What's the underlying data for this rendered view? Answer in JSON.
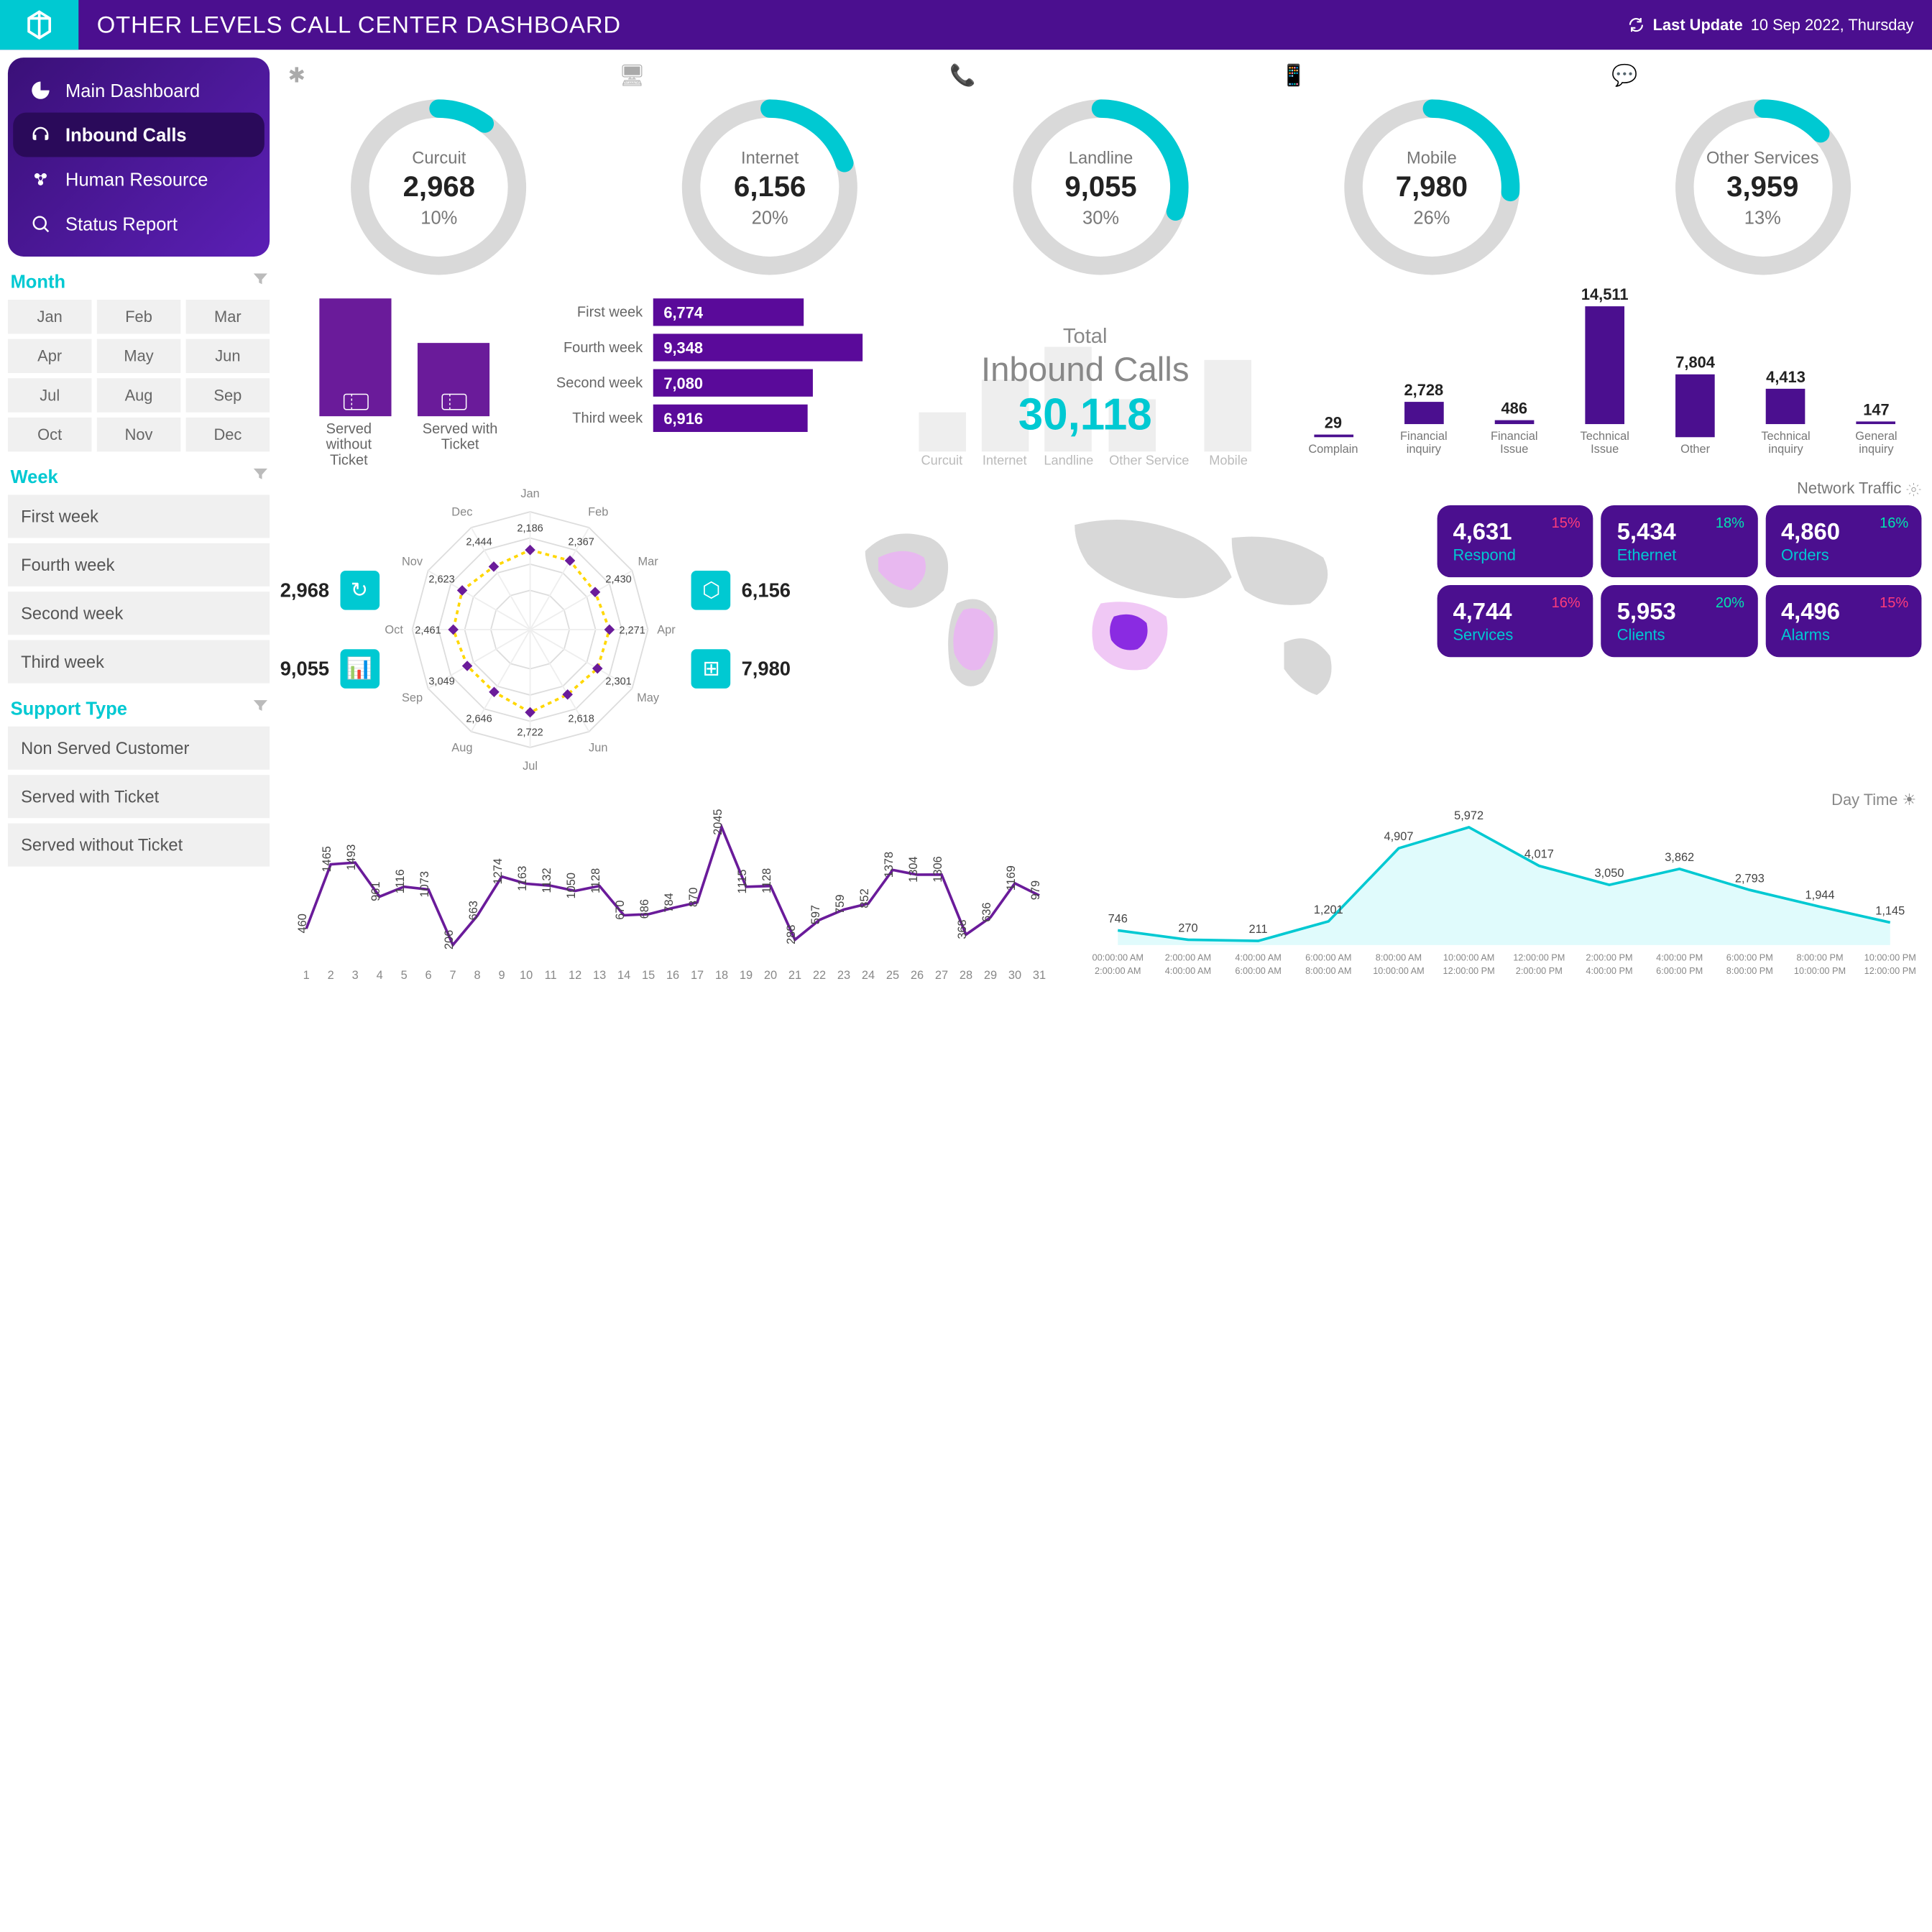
{
  "header": {
    "title": "OTHER LEVELS CALL CENTER DASHBOARD",
    "lastUpdateLabel": "Last Update",
    "lastUpdateValue": "10 Sep 2022, Thursday"
  },
  "colors": {
    "primary": "#4b0f8f",
    "accent": "#00c9d2",
    "donutTrack": "#d9d9d9",
    "barPurple": "#5a0a9a",
    "ghost": "#eee",
    "lineStroke": "#6a1b9a",
    "areaStroke": "#00c9d2",
    "areaFill": "#e0fbfc",
    "pctUp": "#00e5b0",
    "pctDown": "#ff3b7b"
  },
  "nav": [
    {
      "id": "main-dashboard",
      "label": "Main Dashboard",
      "active": false
    },
    {
      "id": "inbound-calls",
      "label": "Inbound Calls",
      "active": true
    },
    {
      "id": "human-resource",
      "label": "Human Resource",
      "active": false
    },
    {
      "id": "status-report",
      "label": "Status Report",
      "active": false
    }
  ],
  "filters": {
    "monthTitle": "Month",
    "months": [
      "Jan",
      "Feb",
      "Mar",
      "Apr",
      "May",
      "Jun",
      "Jul",
      "Aug",
      "Sep",
      "Oct",
      "Nov",
      "Dec"
    ],
    "weekTitle": "Week",
    "weeks": [
      "First week",
      "Fourth week",
      "Second week",
      "Third week"
    ],
    "supportTitle": "Support Type",
    "supportTypes": [
      "Non Served Customer",
      "Served with Ticket",
      "Served without Ticket"
    ]
  },
  "donuts": [
    {
      "label": "Curcuit",
      "value": "2,968",
      "pct": 10
    },
    {
      "label": "Internet",
      "value": "6,156",
      "pct": 20
    },
    {
      "label": "Landline",
      "value": "9,055",
      "pct": 30
    },
    {
      "label": "Mobile",
      "value": "7,980",
      "pct": 26
    },
    {
      "label": "Other Services",
      "value": "3,959",
      "pct": 13
    }
  ],
  "ticketChart": {
    "bars": [
      {
        "label": "Served without Ticket",
        "heightPct": 100
      },
      {
        "label": "Served with Ticket",
        "heightPct": 62
      }
    ]
  },
  "weekBars": [
    {
      "label": "First week",
      "value": "6,774",
      "widthPct": 72
    },
    {
      "label": "Fourth week",
      "value": "9,348",
      "widthPct": 100
    },
    {
      "label": "Second week",
      "value": "7,080",
      "widthPct": 76
    },
    {
      "label": "Third week",
      "value": "6,916",
      "widthPct": 74
    }
  ],
  "total": {
    "title1": "Total",
    "title2": "Inbound Calls",
    "value": "30,118",
    "ghost": [
      {
        "label": "Curcuit",
        "h": 30
      },
      {
        "label": "Internet",
        "h": 55
      },
      {
        "label": "Landline",
        "h": 80
      },
      {
        "label": "Other Service",
        "h": 40
      },
      {
        "label": "Mobile",
        "h": 70
      }
    ]
  },
  "catChart": [
    {
      "label": "Complain",
      "value": 29,
      "display": "29"
    },
    {
      "label": "Financial inquiry",
      "value": 2728,
      "display": "2,728"
    },
    {
      "label": "Financial Issue",
      "value": 486,
      "display": "486"
    },
    {
      "label": "Technical Issue",
      "value": 14511,
      "display": "14,511"
    },
    {
      "label": "Other",
      "value": 7804,
      "display": "7,804"
    },
    {
      "label": "Technical inquiry",
      "value": 4413,
      "display": "4,413"
    },
    {
      "label": "General inquiry",
      "value": 147,
      "display": "147"
    }
  ],
  "radar": {
    "left": [
      {
        "val": "2,968"
      },
      {
        "val": "9,055"
      }
    ],
    "right": [
      {
        "val": "6,156"
      },
      {
        "val": "7,980"
      }
    ],
    "months": [
      "Jan",
      "Feb",
      "Mar",
      "Apr",
      "May",
      "Jun",
      "Jul",
      "Aug",
      "Sep",
      "Oct",
      "Nov",
      "Dec"
    ],
    "values": [
      "2,186",
      "2,367",
      "2,430",
      "2,271",
      "2,301",
      "2,618",
      "2,722",
      "2,646",
      "3,049",
      "2,461",
      "2,623",
      "2,444"
    ]
  },
  "traffic": {
    "title": "Network Traffic",
    "cards": [
      {
        "val": "4,631",
        "lbl": "Respond",
        "pct": "15%",
        "dir": "down"
      },
      {
        "val": "5,434",
        "lbl": "Ethernet",
        "pct": "18%",
        "dir": "up"
      },
      {
        "val": "4,860",
        "lbl": "Orders",
        "pct": "16%",
        "dir": "up"
      },
      {
        "val": "4,744",
        "lbl": "Services",
        "pct": "16%",
        "dir": "down"
      },
      {
        "val": "5,953",
        "lbl": "Clients",
        "pct": "20%",
        "dir": "up"
      },
      {
        "val": "4,496",
        "lbl": "Alarms",
        "pct": "15%",
        "dir": "down"
      }
    ]
  },
  "daily": {
    "days": 31,
    "values": [
      460,
      1465,
      1493,
      961,
      1116,
      1073,
      206,
      663,
      1274,
      1163,
      1132,
      1050,
      1128,
      670,
      686,
      784,
      870,
      2045,
      1115,
      1128,
      288,
      597,
      759,
      852,
      1378,
      1304,
      1306,
      368,
      636,
      1169,
      979
    ]
  },
  "dayTime": {
    "title": "Day Time",
    "labels": [
      "00:00:00 AM",
      "2:00:00 AM",
      "4:00:00 AM",
      "6:00:00 AM",
      "8:00:00 AM",
      "10:00:00 AM",
      "12:00:00 PM",
      "2:00:00 PM",
      "4:00:00 PM",
      "6:00:00 PM",
      "8:00:00 PM",
      "10:00:00 PM"
    ],
    "labels2": [
      "2:00:00 AM",
      "4:00:00 AM",
      "6:00:00 AM",
      "8:00:00 AM",
      "10:00:00 AM",
      "12:00:00 PM",
      "2:00:00 PM",
      "4:00:00 PM",
      "6:00:00 PM",
      "8:00:00 PM",
      "10:00:00 PM",
      "12:00:00 PM"
    ],
    "values": [
      746,
      270,
      211,
      1201,
      4907,
      5972,
      4017,
      3050,
      3862,
      2793,
      1944,
      1145
    ]
  }
}
